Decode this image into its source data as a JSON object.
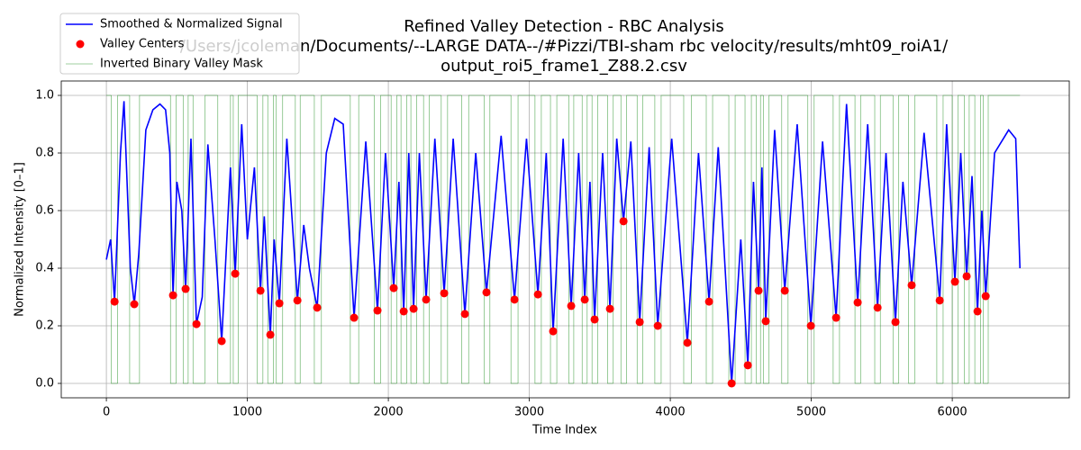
{
  "chart_data": {
    "type": "line",
    "title": [
      "Refined Valley Detection - RBC Analysis",
      "/Users/jcoleman/Documents/--LARGE DATA--/#Pizzi/TBI-sham rbc velocity/results/mht09_roiA1/",
      "output_roi5_frame1_Z88.2.csv"
    ],
    "x_label": "Time Index",
    "y_label": "Normalized Intensity [0–1]",
    "xlim": [
      -320,
      6830
    ],
    "ylim": [
      -0.05,
      1.05
    ],
    "xticks": [
      0,
      1000,
      2000,
      3000,
      4000,
      5000,
      6000
    ],
    "yticks": [
      {
        "value": 0,
        "label": "0.0"
      },
      0.2,
      0.4,
      0.6,
      0.8,
      {
        "value": 1,
        "label": "1.0"
      }
    ],
    "grid": true,
    "legend": "upper-left",
    "series": [
      {
        "name": "Smoothed & Normalized Signal",
        "color": "#0000ff",
        "type": "line",
        "x": [
          0,
          30,
          58,
          100,
          125,
          170,
          198,
          230,
          280,
          330,
          380,
          420,
          450,
          473,
          500,
          535,
          562,
          600,
          639,
          680,
          720,
          770,
          818,
          880,
          914,
          960,
          1000,
          1050,
          1093,
          1120,
          1163,
          1190,
          1227,
          1280,
          1355,
          1400,
          1440,
          1495,
          1560,
          1620,
          1680,
          1757,
          1840,
          1923,
          1980,
          2038,
          2075,
          2109,
          2145,
          2179,
          2220,
          2268,
          2330,
          2396,
          2460,
          2543,
          2620,
          2696,
          2800,
          2895,
          2980,
          3061,
          3120,
          3169,
          3240,
          3297,
          3350,
          3393,
          3430,
          3463,
          3520,
          3572,
          3620,
          3668,
          3720,
          3783,
          3850,
          3911,
          4010,
          4121,
          4200,
          4275,
          4340,
          4435,
          4500,
          4550,
          4590,
          4626,
          4650,
          4677,
          4740,
          4812,
          4900,
          4997,
          5080,
          5176,
          5250,
          5329,
          5400,
          5470,
          5530,
          5597,
          5650,
          5712,
          5800,
          5911,
          5960,
          6019,
          6060,
          6102,
          6140,
          6179,
          6210,
          6237,
          6300,
          6400,
          6450,
          6480
        ],
        "values": [
          0.43,
          0.5,
          0.284,
          0.8,
          0.98,
          0.4,
          0.275,
          0.45,
          0.88,
          0.95,
          0.97,
          0.95,
          0.8,
          0.306,
          0.7,
          0.6,
          0.328,
          0.85,
          0.206,
          0.3,
          0.83,
          0.5,
          0.147,
          0.75,
          0.381,
          0.9,
          0.5,
          0.75,
          0.322,
          0.58,
          0.169,
          0.5,
          0.278,
          0.85,
          0.288,
          0.55,
          0.4,
          0.263,
          0.8,
          0.92,
          0.9,
          0.228,
          0.84,
          0.253,
          0.8,
          0.331,
          0.7,
          0.25,
          0.8,
          0.259,
          0.8,
          0.291,
          0.85,
          0.313,
          0.85,
          0.241,
          0.8,
          0.316,
          0.86,
          0.291,
          0.85,
          0.309,
          0.8,
          0.181,
          0.85,
          0.269,
          0.8,
          0.291,
          0.7,
          0.222,
          0.8,
          0.259,
          0.85,
          0.563,
          0.84,
          0.213,
          0.82,
          0.2,
          0.85,
          0.141,
          0.8,
          0.284,
          0.82,
          0.0,
          0.5,
          0.063,
          0.7,
          0.322,
          0.75,
          0.216,
          0.88,
          0.322,
          0.9,
          0.2,
          0.84,
          0.228,
          0.97,
          0.281,
          0.9,
          0.263,
          0.8,
          0.213,
          0.7,
          0.341,
          0.87,
          0.288,
          0.9,
          0.353,
          0.8,
          0.372,
          0.72,
          0.25,
          0.6,
          0.303,
          0.8,
          0.88,
          0.85,
          0.4
        ]
      },
      {
        "name": "Valley Centers",
        "color": "#ff0000",
        "type": "scatter",
        "x": [
          58,
          198,
          473,
          562,
          639,
          818,
          914,
          1093,
          1163,
          1227,
          1355,
          1495,
          1757,
          1923,
          2038,
          2109,
          2179,
          2268,
          2396,
          2543,
          2696,
          2895,
          3061,
          3169,
          3297,
          3393,
          3463,
          3572,
          3668,
          3783,
          3911,
          4121,
          4275,
          4435,
          4550,
          4626,
          4677,
          4812,
          4997,
          5176,
          5329,
          5470,
          5597,
          5712,
          5911,
          6019,
          6102,
          6179,
          6237
        ],
        "values": [
          0.284,
          0.275,
          0.306,
          0.328,
          0.206,
          0.147,
          0.381,
          0.322,
          0.169,
          0.278,
          0.288,
          0.263,
          0.228,
          0.253,
          0.331,
          0.25,
          0.259,
          0.291,
          0.313,
          0.241,
          0.316,
          0.291,
          0.309,
          0.181,
          0.269,
          0.291,
          0.222,
          0.259,
          0.563,
          0.213,
          0.2,
          0.141,
          0.284,
          0.0,
          0.063,
          0.322,
          0.216,
          0.322,
          0.2,
          0.228,
          0.281,
          0.263,
          0.213,
          0.341,
          0.288,
          0.353,
          0.372,
          0.25,
          0.303
        ]
      },
      {
        "name": "Inverted Binary Valley Mask",
        "color": "#008000",
        "type": "step",
        "x": [
          0,
          35,
          80,
          165,
          235,
          455,
          495,
          545,
          580,
          615,
          700,
          790,
          880,
          900,
          935,
          1070,
          1110,
          1145,
          1185,
          1205,
          1250,
          1340,
          1375,
          1475,
          1525,
          1730,
          1790,
          1900,
          1945,
          2020,
          2060,
          2090,
          2130,
          2160,
          2200,
          2250,
          2290,
          2375,
          2420,
          2520,
          2570,
          2680,
          2720,
          2870,
          2920,
          3040,
          3085,
          3150,
          3195,
          3280,
          3315,
          3375,
          3410,
          3445,
          3485,
          3555,
          3595,
          3650,
          3690,
          3765,
          3805,
          3890,
          3935,
          4095,
          4150,
          4255,
          4300,
          4415,
          4460,
          4530,
          4575,
          4610,
          4640,
          4660,
          4700,
          4790,
          4835,
          4975,
          5020,
          5155,
          5200,
          5310,
          5350,
          5450,
          5490,
          5580,
          5620,
          5690,
          5735,
          5890,
          5935,
          6000,
          6040,
          6085,
          6120,
          6160,
          6200,
          6220,
          6255,
          6480
        ],
        "values": [
          1,
          0,
          1,
          0,
          1,
          0,
          1,
          0,
          1,
          0,
          1,
          0,
          1,
          0,
          1,
          0,
          1,
          0,
          1,
          0,
          1,
          0,
          1,
          0,
          1,
          0,
          1,
          0,
          1,
          0,
          1,
          0,
          1,
          0,
          1,
          0,
          1,
          0,
          1,
          0,
          1,
          0,
          1,
          0,
          1,
          0,
          1,
          0,
          1,
          0,
          1,
          0,
          1,
          0,
          1,
          0,
          1,
          0,
          1,
          0,
          1,
          0,
          1,
          0,
          1,
          0,
          1,
          0,
          1,
          0,
          1,
          0,
          1,
          0,
          1,
          0,
          1,
          0,
          1,
          0,
          1,
          0,
          1,
          0,
          1,
          0,
          1,
          0,
          1,
          0,
          1,
          0,
          1,
          0,
          1,
          0,
          1,
          0,
          1,
          1
        ]
      }
    ]
  }
}
